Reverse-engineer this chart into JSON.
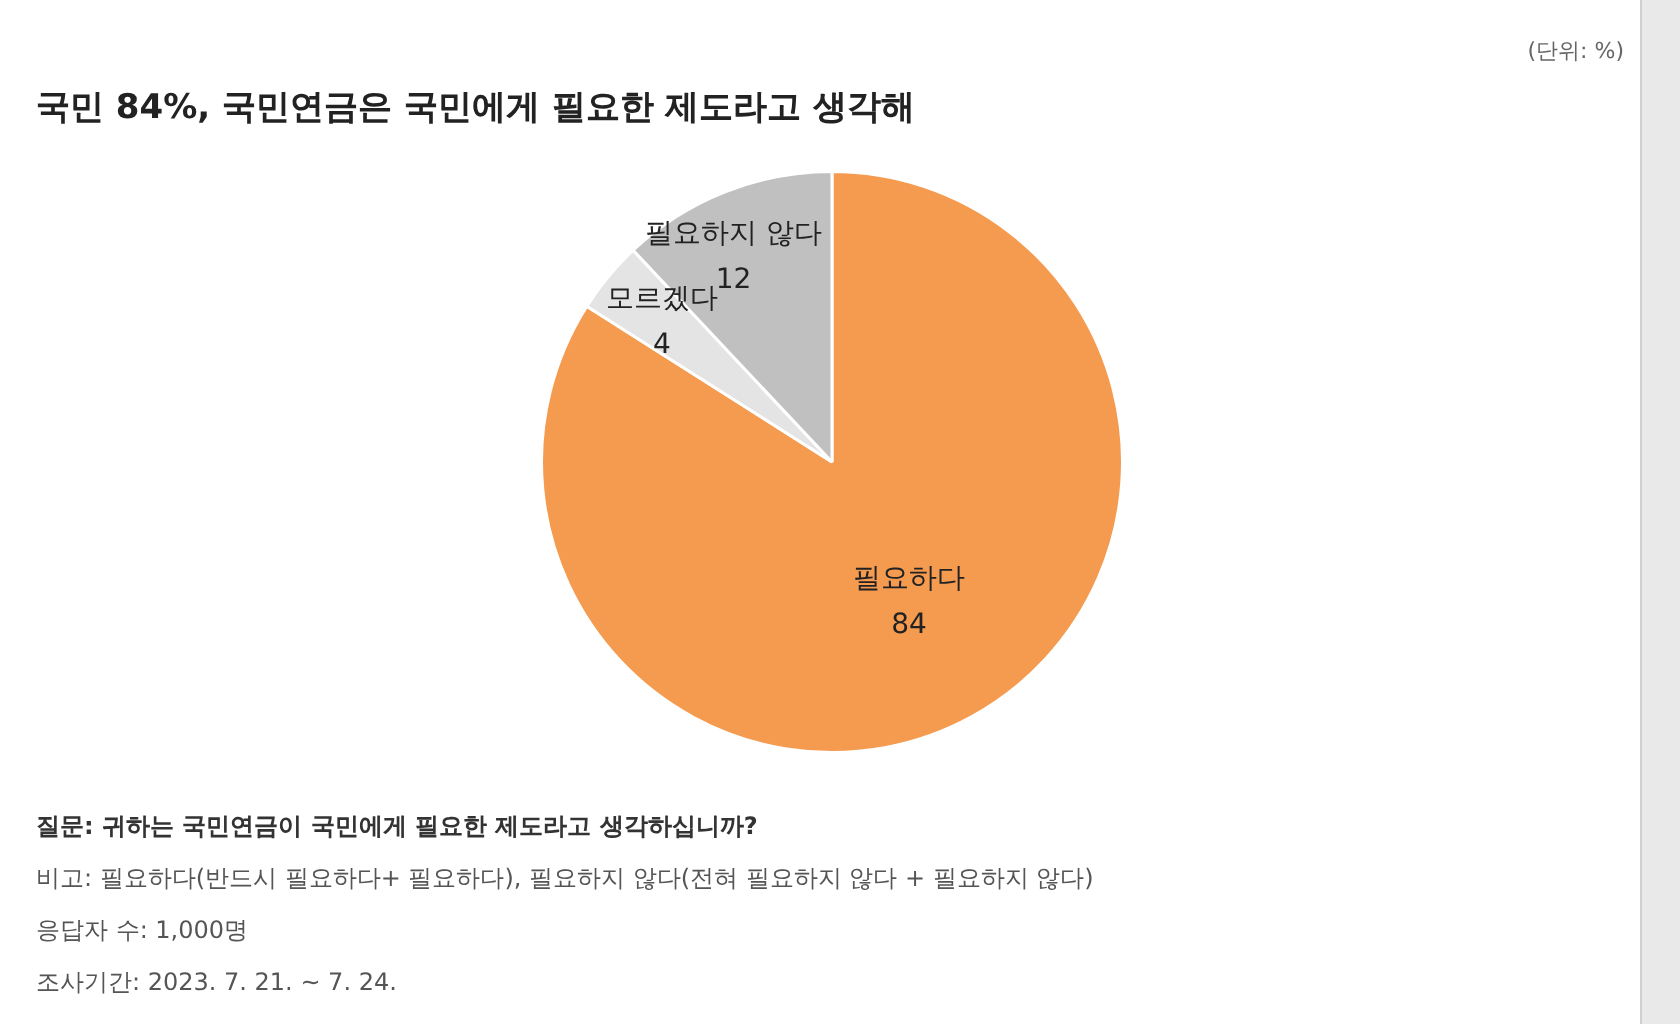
{
  "chart_data": {
    "type": "pie",
    "title": "국민 84%, 국민연금은 국민에게 필요한 제도라고 생각해",
    "categories": [
      "필요하다",
      "모르겠다",
      "필요하지 않다"
    ],
    "values": [
      84,
      4,
      12
    ],
    "colors": [
      "#f59b50",
      "#e4e4e4",
      "#c0c0c0"
    ],
    "data_labels": true,
    "annotations": [
      "(단위: %)",
      "질문:  귀하는 국민연금이 국민에게 필요한 제도라고 생각하십니까?",
      "비고: 필요하다(반드시 필요하다+ 필요하다), 필요하지 않다(전혀 필요하지 않다 + 필요하지 않다)",
      "응답자 수: 1,000명",
      "조사기간: 2023. 7. 21. ~ 7. 24."
    ]
  }
}
